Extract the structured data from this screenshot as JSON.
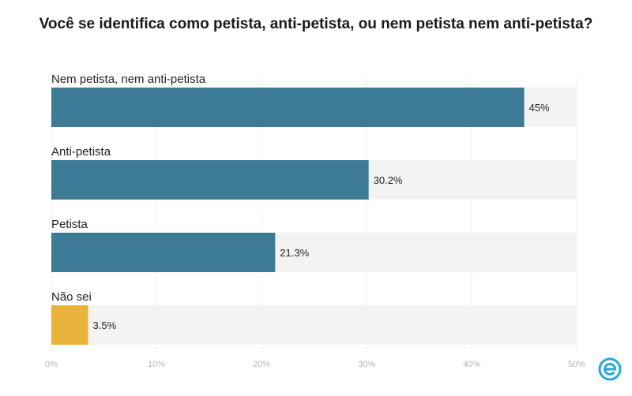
{
  "title": "Você se identifica como petista, anti-petista, ou nem petista nem anti-petista?",
  "colors": {
    "primary_bar": "#3d7a96",
    "highlight_bar": "#e8b23b",
    "track": "#f3f3f3",
    "tick_text": "#b5b5b5",
    "logo": "#2aa8d8"
  },
  "logo_icon": "e-circle-logo",
  "chart_data": {
    "type": "bar",
    "orientation": "horizontal",
    "title": "Você se identifica como petista, anti-petista, ou nem petista nem anti-petista?",
    "categories": [
      "Nem petista, nem anti-petista",
      "Anti-petista",
      "Petista",
      "Não sei"
    ],
    "values": [
      45,
      30.2,
      21.3,
      3.5
    ],
    "value_labels": [
      "45%",
      "30.2%",
      "21.3%",
      "3.5%"
    ],
    "bar_colors": [
      "#3d7a96",
      "#3d7a96",
      "#3d7a96",
      "#e8b23b"
    ],
    "xlim": [
      0,
      50
    ],
    "xticks": [
      0,
      10,
      20,
      30,
      40,
      50
    ],
    "xtick_labels": [
      "0%",
      "10%",
      "20%",
      "30%",
      "40%",
      "50%"
    ],
    "grid": "vertical dotted",
    "legend": "none"
  }
}
